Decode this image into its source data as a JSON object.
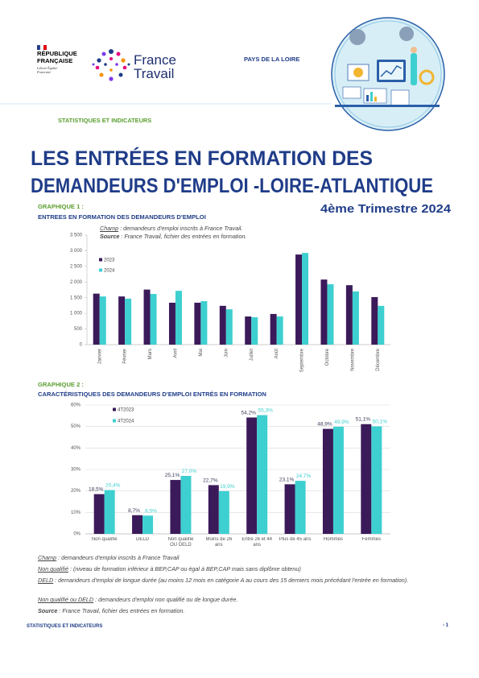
{
  "header": {
    "republique": "RÉPUBLIQUE FRANÇAISE",
    "devise": "Liberté Égalité Fraternité",
    "brand": "France Travail",
    "region": "PAYS DE LA LOIRE",
    "section": "STATISTIQUES ET INDICATEURS"
  },
  "title": {
    "lines": [
      "LES ENTRÉES EN FORMATION DES",
      "DEMANDEURS D'EMPLOI -LOIRE-ATLANTIQUE"
    ],
    "period": "4ème Trimestre 2024"
  },
  "chart_data": [
    {
      "type": "bar",
      "label": "GRAPHIQUE 1 :",
      "title": "ENTREES EN FORMATION DES DEMANDEURS D'EMPLOI",
      "notes": [
        {
          "term": "Champ",
          "text": " : demandeurs d'emploi inscrits à France Travail."
        },
        {
          "term": "Source",
          "text": " : France Travail, fichier des entrées en formation."
        }
      ],
      "categories": [
        "Janvier",
        "Février",
        "Mars",
        "Avril",
        "Mai",
        "Juin",
        "Juillet",
        "Août",
        "Septembre",
        "Octobre",
        "Novembre",
        "Décembre"
      ],
      "series": [
        {
          "name": "2023",
          "color": "#3b1a5a",
          "values": [
            1630,
            1540,
            1760,
            1340,
            1340,
            1240,
            900,
            980,
            2880,
            2080,
            1900,
            1520
          ]
        },
        {
          "name": "2024",
          "color": "#3ecfd0",
          "values": [
            1540,
            1470,
            1620,
            1720,
            1390,
            1130,
            875,
            900,
            2930,
            1930,
            1700,
            1240
          ]
        }
      ],
      "ylim": [
        0,
        3500
      ],
      "yticks": [
        0,
        500,
        {
          "value": 1000,
          "label": "1 000"
        },
        {
          "value": 1500,
          "label": "1 500"
        },
        {
          "value": 2000,
          "label": "2 000"
        },
        {
          "value": 2500,
          "label": "2 500"
        },
        {
          "value": 3000,
          "label": "3 000"
        },
        {
          "value": 3500,
          "label": "3 500"
        }
      ],
      "grid": false
    },
    {
      "type": "bar",
      "label": "GRAPHIQUE 2 :",
      "title": "CARACTÉRISTIQUES DES DEMANDEURS D'EMPLOI ENTRÉS EN FORMATION",
      "categories": [
        "Non qualifié",
        "DELD",
        "Non qualifié OU DELD",
        "Moins de 26 ans",
        "Entre 26 et 44 ans",
        "Plus de 45 ans",
        "Hommes",
        "Femmes"
      ],
      "series": [
        {
          "name": "4T2023",
          "color": "#3b1a5a",
          "values": [
            18.5,
            8.7,
            25.1,
            22.7,
            54.2,
            23.1,
            48.9,
            51.1
          ],
          "value_labels": [
            "18,5%",
            "8,7%",
            "25,1%",
            "22,7%",
            "54,2%",
            "23,1%",
            "48,9%",
            "51,1%"
          ]
        },
        {
          "name": "4T2024",
          "color": "#3ecfd0",
          "values": [
            20.4,
            8.5,
            27.0,
            19.9,
            55.3,
            24.7,
            49.9,
            50.1
          ],
          "value_labels": [
            "20,4%",
            "8,5%",
            "27,0%",
            "19,9%",
            "55,3%",
            "24,7%",
            "49,9%",
            "50,1%"
          ]
        }
      ],
      "ylim": [
        0,
        60
      ],
      "yticks": [
        {
          "value": 0,
          "label": "0%"
        },
        {
          "value": 10,
          "label": "10%"
        },
        {
          "value": 20,
          "label": "20%"
        },
        {
          "value": 30,
          "label": "30%"
        },
        {
          "value": 40,
          "label": "40%"
        },
        {
          "value": 50,
          "label": "50%"
        },
        {
          "value": 60,
          "label": "60%"
        }
      ],
      "grid": true
    }
  ],
  "notes": [
    {
      "term": "Champ",
      "text": " : demandeurs d'emploi inscrits à France Travail"
    },
    {
      "term": "Non qualifié",
      "text": " :  (niveau de formation inférieur à BEP,CAP ou égal à BEP,CAP mais sans diplôme obtenu)"
    },
    {
      "term": "DELD",
      "text": " : demandeurs d'emploi de longue durée (au moins 12 mois en catégorie A au cours des 15 derniers mois précédant l'entrée en formation)."
    },
    {
      "term": "Non qualifié ou DELD",
      "text": " : demandeurs d'emploi non qualifié ou de longue durée."
    },
    {
      "term": "Source",
      "text": " : France Travail, fichier des entrées en formation."
    }
  ],
  "footer": {
    "section": "STATISTIQUES ET INDICATEURS",
    "page": "- 1"
  }
}
